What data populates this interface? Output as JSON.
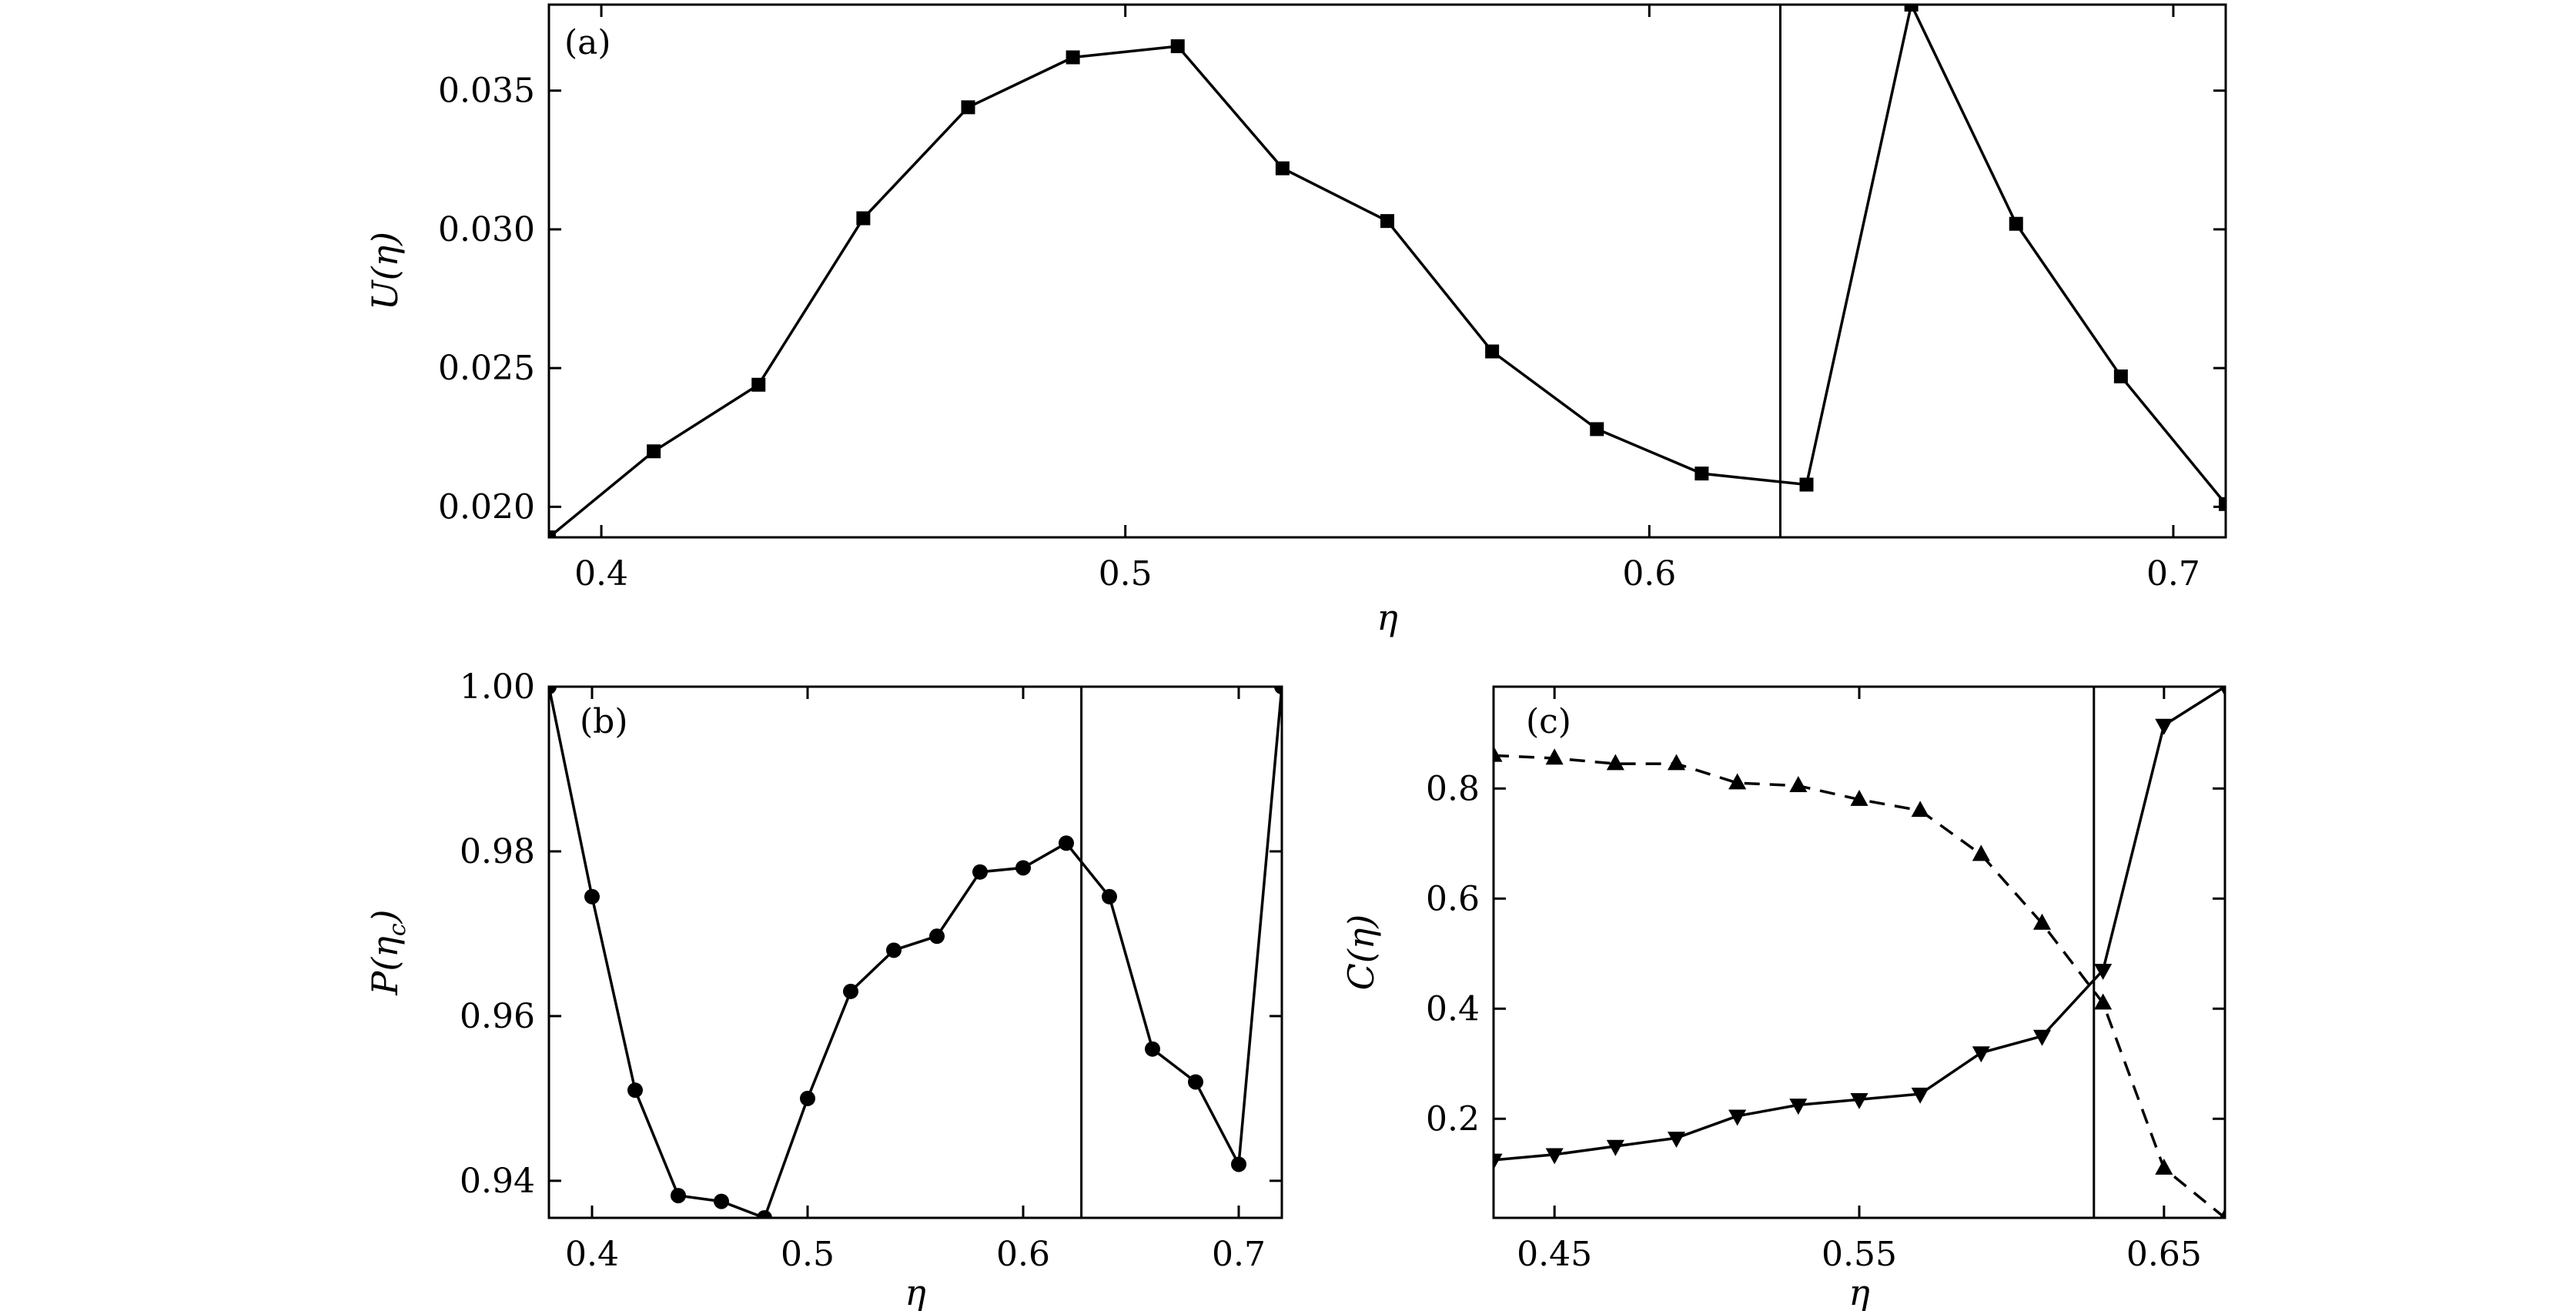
{
  "chart_data": [
    {
      "id": "a",
      "type": "line",
      "panel_label": "(a)",
      "xlabel": "η",
      "ylabel": "U(η)",
      "xlim": [
        0.39,
        0.71
      ],
      "ylim": [
        0.0189,
        0.0381
      ],
      "xticks": [
        0.4,
        0.5,
        0.6,
        0.7
      ],
      "xtick_labels": [
        "0.4",
        "0.5",
        "0.6",
        "0.7"
      ],
      "yticks": [
        0.02,
        0.025,
        0.03,
        0.035
      ],
      "ytick_labels": [
        "0.020",
        "0.025",
        "0.030",
        "0.035"
      ],
      "vline": 0.625,
      "grid": false,
      "series": [
        {
          "marker": "square",
          "linestyle": "solid",
          "x": [
            0.39,
            0.41,
            0.43,
            0.45,
            0.47,
            0.49,
            0.51,
            0.53,
            0.55,
            0.57,
            0.59,
            0.61,
            0.63,
            0.65,
            0.67,
            0.69,
            0.71
          ],
          "y": [
            0.0189,
            0.022,
            0.0244,
            0.0304,
            0.0344,
            0.0362,
            0.0366,
            0.0322,
            0.0303,
            0.0256,
            0.0228,
            0.0212,
            0.0208,
            0.0381,
            0.0302,
            0.0247,
            0.0201
          ]
        }
      ]
    },
    {
      "id": "b",
      "type": "line",
      "panel_label": "(b)",
      "xlabel": "η",
      "ylabel": "P(ηc)",
      "ylabel_main": "P(η",
      "ylabel_sub": "c",
      "ylabel_close": ")",
      "xlim": [
        0.38,
        0.72
      ],
      "ylim": [
        0.9355,
        1.0
      ],
      "xticks": [
        0.4,
        0.5,
        0.6,
        0.7
      ],
      "xtick_labels": [
        "0.4",
        "0.5",
        "0.6",
        "0.7"
      ],
      "yticks": [
        0.94,
        0.96,
        0.98,
        1.0
      ],
      "ytick_labels": [
        "0.94",
        "0.96",
        "0.98",
        "1.00"
      ],
      "vline": 0.627,
      "grid": false,
      "series": [
        {
          "marker": "circle",
          "linestyle": "solid",
          "x": [
            0.38,
            0.4,
            0.42,
            0.44,
            0.46,
            0.48,
            0.5,
            0.52,
            0.54,
            0.56,
            0.58,
            0.6,
            0.62,
            0.64,
            0.66,
            0.68,
            0.7,
            0.72
          ],
          "y": [
            1.0,
            0.9745,
            0.951,
            0.9382,
            0.9375,
            0.9355,
            0.95,
            0.963,
            0.968,
            0.9697,
            0.9775,
            0.978,
            0.981,
            0.9745,
            0.956,
            0.952,
            0.942,
            1.0
          ]
        }
      ]
    },
    {
      "id": "c",
      "type": "line",
      "panel_label": "(c)",
      "xlabel": "η",
      "ylabel": "C(η)",
      "xlim": [
        0.43,
        0.67
      ],
      "ylim": [
        0.02,
        0.985
      ],
      "xticks": [
        0.45,
        0.55,
        0.65
      ],
      "xtick_labels": [
        "0.45",
        "0.55",
        "0.65"
      ],
      "yticks": [
        0.2,
        0.4,
        0.6,
        0.8
      ],
      "ytick_labels": [
        "0.2",
        "0.4",
        "0.6",
        "0.8"
      ],
      "vline": 0.627,
      "grid": false,
      "series": [
        {
          "marker": "triangle-up",
          "linestyle": "dashed",
          "x": [
            0.43,
            0.45,
            0.47,
            0.49,
            0.51,
            0.53,
            0.55,
            0.57,
            0.59,
            0.61,
            0.63,
            0.65,
            0.67
          ],
          "y": [
            0.86,
            0.855,
            0.845,
            0.845,
            0.81,
            0.805,
            0.78,
            0.76,
            0.68,
            0.555,
            0.41,
            0.11,
            0.02
          ]
        },
        {
          "marker": "triangle-down",
          "linestyle": "solid",
          "x": [
            0.43,
            0.45,
            0.47,
            0.49,
            0.51,
            0.53,
            0.55,
            0.57,
            0.59,
            0.61,
            0.63,
            0.65,
            0.67
          ],
          "y": [
            0.125,
            0.135,
            0.15,
            0.165,
            0.205,
            0.225,
            0.235,
            0.245,
            0.32,
            0.35,
            0.47,
            0.915,
            0.985
          ]
        }
      ]
    }
  ]
}
